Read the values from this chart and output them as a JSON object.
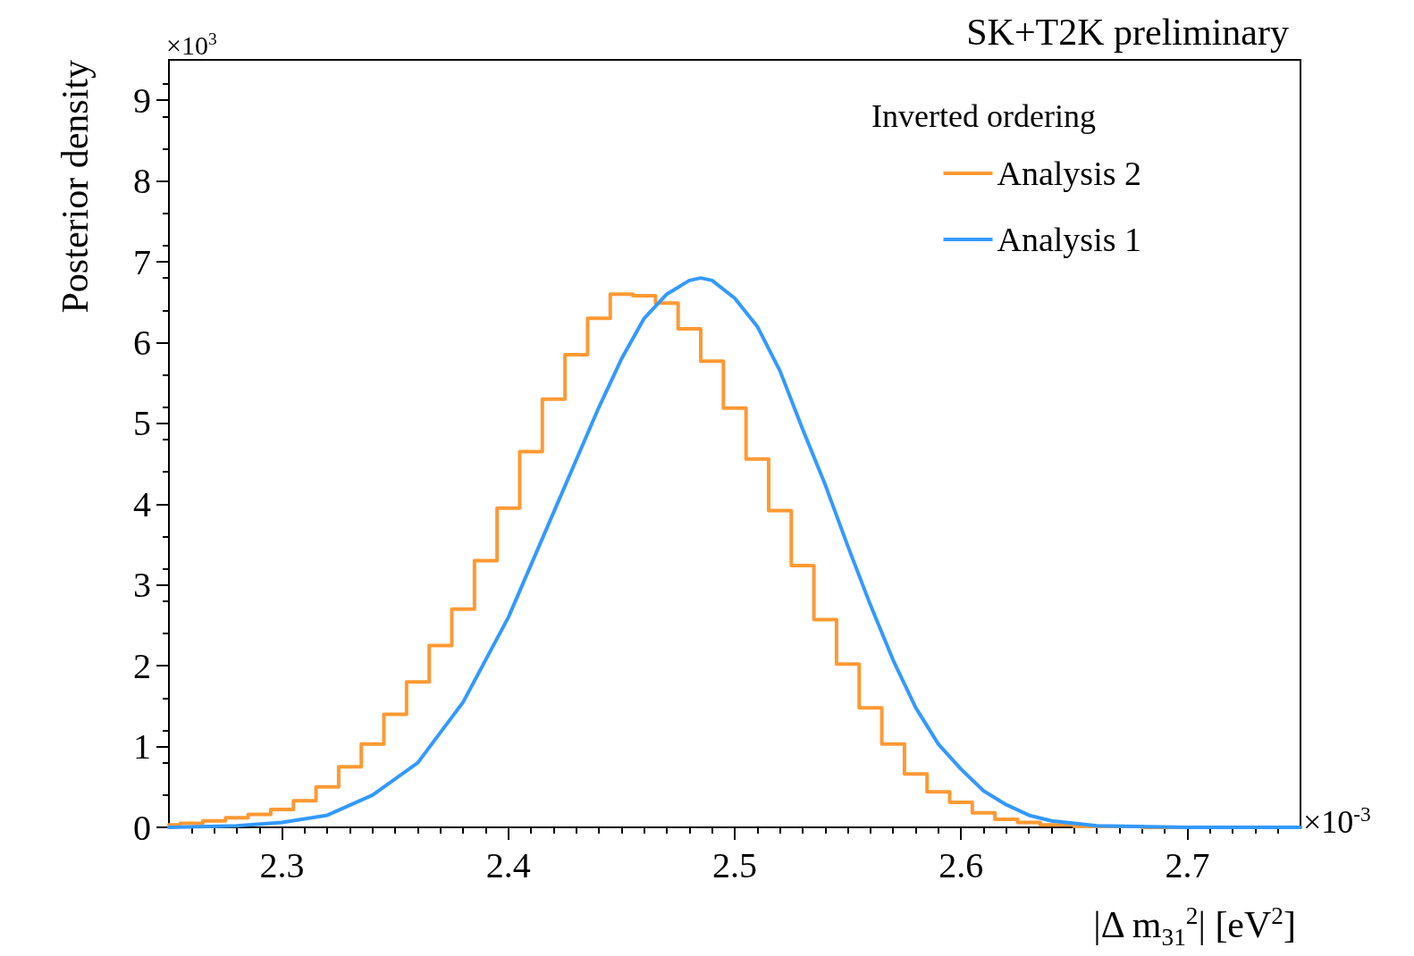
{
  "chart_data": {
    "type": "line",
    "title": "SK+T2K preliminary",
    "xlabel": "|Δ m$_{31}$$^{2}$| [eV$^{2}$]",
    "ylabel": "Posterior density",
    "legend_title": "Inverted ordering",
    "annotations": [
      "×10$^{3}$",
      "×10$^{-3}$"
    ],
    "xlim": [
      2.25,
      2.75
    ],
    "xticks": [
      2.3,
      2.4,
      2.5,
      2.6,
      2.7
    ],
    "ylim": [
      0,
      9.5
    ],
    "yticks": [
      0,
      1,
      2,
      3,
      4,
      5,
      6,
      7,
      8,
      9
    ],
    "grid": false,
    "legend": "top right",
    "marker": "none",
    "line_style": "solid",
    "series": [
      {
        "name": "Analysis 2",
        "type": "step",
        "color": "#ff9933",
        "x": [
          2.25,
          2.26,
          2.27,
          2.28,
          2.29,
          2.3,
          2.31,
          2.32,
          2.33,
          2.34,
          2.35,
          2.36,
          2.37,
          2.38,
          2.39,
          2.4,
          2.41,
          2.42,
          2.43,
          2.44,
          2.45,
          2.46,
          2.47,
          2.48,
          2.49,
          2.5,
          2.51,
          2.52,
          2.53,
          2.54,
          2.55,
          2.56,
          2.57,
          2.58,
          2.59,
          2.6,
          2.61,
          2.62,
          2.63,
          2.64,
          2.66,
          2.7,
          2.75
        ],
        "values": [
          0.03,
          0.05,
          0.08,
          0.12,
          0.16,
          0.22,
          0.33,
          0.5,
          0.75,
          1.03,
          1.4,
          1.8,
          2.25,
          2.7,
          3.3,
          3.95,
          4.65,
          5.3,
          5.85,
          6.3,
          6.6,
          6.58,
          6.49,
          6.17,
          5.77,
          5.19,
          4.56,
          3.92,
          3.24,
          2.57,
          2.02,
          1.48,
          1.03,
          0.66,
          0.44,
          0.31,
          0.18,
          0.1,
          0.06,
          0.03,
          0.01,
          0,
          0
        ]
      },
      {
        "name": "Analysis 1",
        "type": "line",
        "color": "#3399ff",
        "x": [
          2.25,
          2.28,
          2.3,
          2.32,
          2.34,
          2.36,
          2.38,
          2.4,
          2.42,
          2.44,
          2.45,
          2.46,
          2.47,
          2.48,
          2.485,
          2.49,
          2.5,
          2.51,
          2.52,
          2.53,
          2.54,
          2.55,
          2.56,
          2.57,
          2.58,
          2.59,
          2.6,
          2.61,
          2.62,
          2.63,
          2.64,
          2.66,
          2.7,
          2.75
        ],
        "values": [
          0,
          0.02,
          0.06,
          0.15,
          0.4,
          0.8,
          1.55,
          2.6,
          3.9,
          5.2,
          5.8,
          6.3,
          6.6,
          6.77,
          6.8,
          6.77,
          6.55,
          6.2,
          5.65,
          4.93,
          4.24,
          3.48,
          2.75,
          2.07,
          1.48,
          1.03,
          0.72,
          0.45,
          0.28,
          0.15,
          0.08,
          0.02,
          0,
          0
        ]
      }
    ]
  }
}
